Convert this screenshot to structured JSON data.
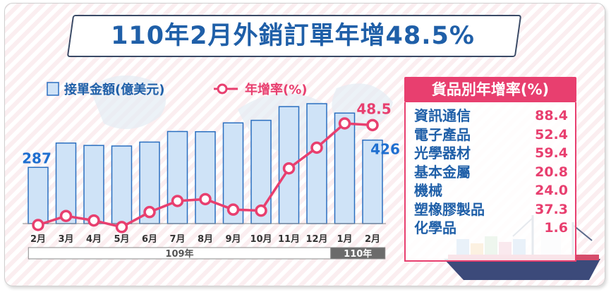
{
  "title": "110年2月外銷訂單年增48.5%",
  "legend": {
    "bar_label": "接單金額(億美元)",
    "line_label": "年增率(%)"
  },
  "colors": {
    "bar_fill": "#cfe3f7",
    "bar_stroke": "#2a6fc0",
    "line": "#e83f6f",
    "title": "#1f5fa8",
    "accent": "#e83f6f"
  },
  "chart_data": {
    "type": "bar",
    "categories": [
      "2月",
      "3月",
      "4月",
      "5月",
      "6月",
      "7月",
      "8月",
      "9月",
      "10月",
      "11月",
      "12月",
      "1月",
      "2月"
    ],
    "year_groups": [
      {
        "label": "109年",
        "count": 11
      },
      {
        "label": "110年",
        "count": 2
      }
    ],
    "series": [
      {
        "name": "接單金額(億美元)",
        "kind": "bar",
        "values": [
          287,
          411,
          399,
          396,
          416,
          470,
          469,
          514,
          527,
          597,
          612,
          564,
          426
        ],
        "labeled": {
          "0": "287",
          "12": "426"
        }
      },
      {
        "name": "年增率(%)",
        "kind": "line",
        "values": [
          -0.2,
          4.2,
          2.0,
          -1.2,
          6.1,
          11.5,
          12.4,
          7.3,
          6.8,
          27.4,
          37.5,
          49.3,
          48.5
        ],
        "labeled": {
          "12": "48.5"
        }
      }
    ]
  },
  "category_growth": {
    "header": "貨品別年增率(%)",
    "items": [
      {
        "name": "資訊通信",
        "value": "88.4"
      },
      {
        "name": "電子產品",
        "value": "52.4"
      },
      {
        "name": "光學器材",
        "value": "59.4"
      },
      {
        "name": "基本金屬",
        "value": "20.8"
      },
      {
        "name": "機械",
        "value": "24.0"
      },
      {
        "name": "塑橡膠製品",
        "value": "37.3"
      },
      {
        "name": "化學品",
        "value": "1.6"
      }
    ]
  }
}
